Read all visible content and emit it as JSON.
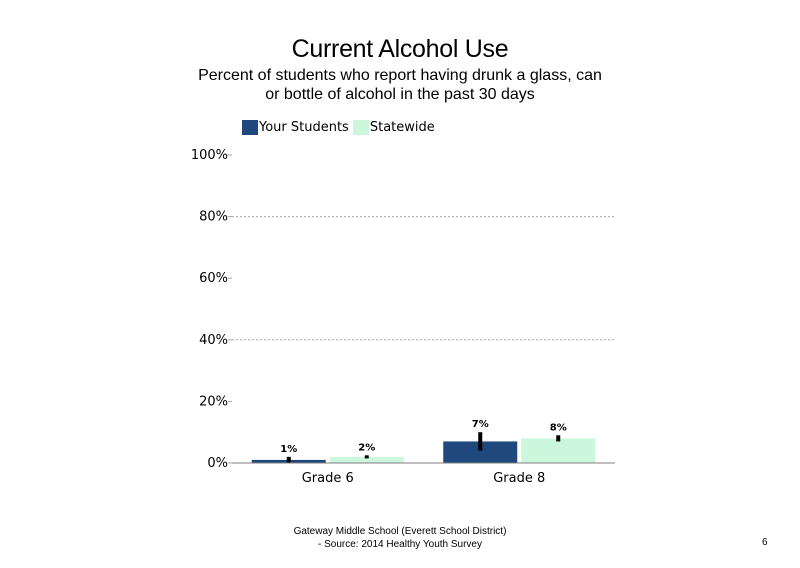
{
  "title": "Current Alcohol Use",
  "subtitle": "Percent of students who report having drunk a glass, can or bottle of alcohol in the past 30 days",
  "colors": {
    "your_students": "#1f497d",
    "statewide": "#ccf7dd",
    "error_bar": "#000000",
    "grid": "#a6a6a6"
  },
  "chart_data": {
    "type": "bar",
    "categories": [
      "Grade 6",
      "Grade 8"
    ],
    "series": [
      {
        "name": "Your Students",
        "values": [
          1,
          7
        ],
        "labels": [
          "1%",
          "7%"
        ],
        "error": [
          [
            0,
            2
          ],
          [
            4,
            10
          ]
        ]
      },
      {
        "name": "Statewide",
        "values": [
          2,
          8
        ],
        "labels": [
          "2%",
          "8%"
        ],
        "error": [
          [
            1.5,
            2.5
          ],
          [
            7,
            9
          ]
        ]
      }
    ],
    "ylim": [
      0,
      100
    ],
    "yticks": [
      "0%",
      "20%",
      "40%",
      "60%",
      "80%",
      "100%"
    ],
    "grid": true,
    "legend": "top-left"
  },
  "footer": {
    "line1": "Gateway Middle School (Everett School District)",
    "line2": "- Source: 2014 Healthy Youth Survey"
  },
  "page_number": "6"
}
